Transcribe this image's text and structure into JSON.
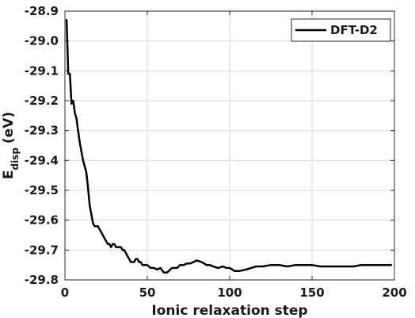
{
  "chart_data": {
    "type": "line",
    "xlabel": "Ionic relaxation step",
    "ylabel": {
      "base": "E",
      "subscript": "disp",
      "unit": "(eV)"
    },
    "xlim": [
      0,
      200
    ],
    "ylim": [
      -29.8,
      -28.9
    ],
    "xticks": [
      "0",
      "50",
      "100",
      "150",
      "200"
    ],
    "yticks": [
      "-28.9",
      "-29.0",
      "-29.1",
      "-29.2",
      "-29.3",
      "-29.4",
      "-29.5",
      "-29.6",
      "-29.7",
      "-29.8"
    ],
    "xtick_values": [
      0,
      50,
      100,
      150,
      200
    ],
    "ytick_values": [
      -28.9,
      -29.0,
      -29.1,
      -29.2,
      -29.3,
      -29.4,
      -29.5,
      -29.6,
      -29.7,
      -29.8
    ],
    "grid": true,
    "legend_position": "top-right",
    "series": [
      {
        "name": "DFT-D2",
        "color": "#000000",
        "x": [
          1,
          2,
          3,
          4,
          5,
          6,
          7,
          8,
          9,
          10,
          11,
          12,
          13,
          14,
          15,
          16,
          17,
          18,
          19,
          20,
          21,
          22,
          23,
          24,
          25,
          26,
          27,
          28,
          29,
          30,
          31,
          32,
          33,
          34,
          35,
          36,
          37,
          38,
          39,
          40,
          41,
          42,
          43,
          44,
          45,
          46,
          47,
          48,
          50,
          52,
          54,
          56,
          58,
          60,
          62,
          65,
          68,
          70,
          72,
          74,
          76,
          78,
          80,
          83,
          86,
          88,
          90,
          93,
          96,
          98,
          100,
          103,
          106,
          110,
          113,
          116,
          120,
          125,
          130,
          135,
          140,
          145,
          150,
          155,
          160,
          165,
          170,
          175,
          180,
          185,
          190,
          195,
          198
        ],
        "y": [
          -28.93,
          -29.11,
          -29.11,
          -29.21,
          -29.2,
          -29.24,
          -29.26,
          -29.3,
          -29.34,
          -29.37,
          -29.4,
          -29.42,
          -29.44,
          -29.49,
          -29.55,
          -29.58,
          -29.61,
          -29.62,
          -29.62,
          -29.62,
          -29.63,
          -29.64,
          -29.65,
          -29.66,
          -29.67,
          -29.68,
          -29.68,
          -29.69,
          -29.68,
          -29.68,
          -29.69,
          -29.69,
          -29.69,
          -29.69,
          -29.7,
          -29.7,
          -29.71,
          -29.72,
          -29.73,
          -29.74,
          -29.74,
          -29.74,
          -29.73,
          -29.73,
          -29.74,
          -29.74,
          -29.75,
          -29.75,
          -29.75,
          -29.76,
          -29.76,
          -29.765,
          -29.76,
          -29.775,
          -29.775,
          -29.76,
          -29.76,
          -29.75,
          -29.75,
          -29.745,
          -29.745,
          -29.74,
          -29.735,
          -29.74,
          -29.75,
          -29.75,
          -29.755,
          -29.76,
          -29.755,
          -29.76,
          -29.76,
          -29.77,
          -29.77,
          -29.765,
          -29.76,
          -29.755,
          -29.755,
          -29.75,
          -29.75,
          -29.755,
          -29.75,
          -29.75,
          -29.75,
          -29.755,
          -29.755,
          -29.755,
          -29.755,
          -29.755,
          -29.75,
          -29.75,
          -29.75,
          -29.75,
          -29.75
        ]
      }
    ]
  }
}
